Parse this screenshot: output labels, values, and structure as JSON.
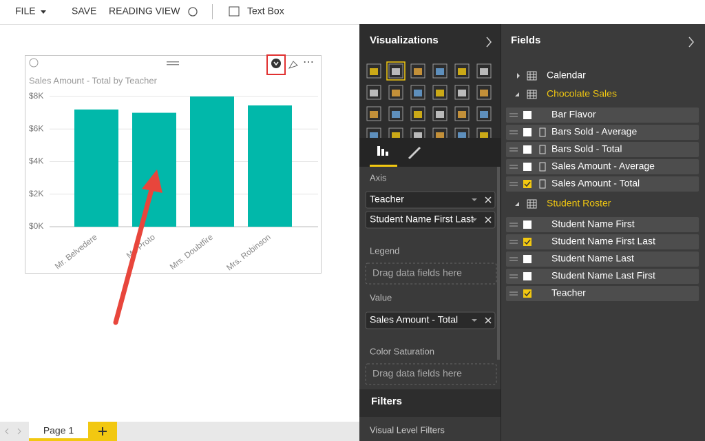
{
  "toolbar": {
    "items": [
      "FILE",
      "SAVE",
      "READING VIEW",
      "Text Box"
    ]
  },
  "report": {
    "chart": {
      "type": "bar",
      "title": "Sales Amount - Total by Teacher",
      "categories": [
        "Mr. Belvedere",
        "Mr. Proto",
        "Mrs. Doubtfire",
        "Mrs. Robinson"
      ],
      "values": [
        7200,
        7000,
        8000,
        7450
      ],
      "color": "#01b8aa",
      "ylim": [
        0,
        8000
      ],
      "yticks": [
        {
          "value": 0,
          "label": "$0K"
        },
        {
          "value": 2000,
          "label": "$2K"
        },
        {
          "value": 4000,
          "label": "$4K"
        },
        {
          "value": 6000,
          "label": "$6K"
        },
        {
          "value": 8000,
          "label": "$8K"
        }
      ],
      "grid": true
    }
  },
  "pages": {
    "tabs": [
      "Page 1"
    ]
  },
  "visualizations": {
    "title": "Visualizations",
    "sections": [
      {
        "label": "Axis",
        "fields": [
          "Teacher",
          "Student Name First Last"
        ]
      },
      {
        "label": "Legend",
        "placeholder": "Drag data fields here"
      },
      {
        "label": "Value",
        "fields": [
          "Sales Amount - Total"
        ]
      },
      {
        "label": "Color Saturation",
        "placeholder": "Drag data fields here"
      }
    ]
  },
  "filters": {
    "title": "Filters",
    "subtitle": "Visual Level Filters"
  },
  "fields": {
    "title": "Fields",
    "tables": [
      {
        "name": "Calendar",
        "expanded": false
      },
      {
        "name": "Chocolate Sales",
        "expanded": true,
        "fields": [
          {
            "name": "Bar Flavor",
            "checked": false,
            "measure": false
          },
          {
            "name": "Bars Sold - Average",
            "checked": false,
            "measure": true
          },
          {
            "name": "Bars Sold - Total",
            "checked": false,
            "measure": true
          },
          {
            "name": "Sales Amount - Average",
            "checked": false,
            "measure": true
          },
          {
            "name": "Sales Amount - Total",
            "checked": true,
            "measure": true
          }
        ]
      },
      {
        "name": "Student Roster",
        "expanded": true,
        "fields": [
          {
            "name": "Student Name First",
            "checked": false,
            "measure": false
          },
          {
            "name": "Student Name First Last",
            "checked": true,
            "measure": false
          },
          {
            "name": "Student Name Last",
            "checked": false,
            "measure": false
          },
          {
            "name": "Student Name Last First",
            "checked": false,
            "measure": false
          },
          {
            "name": "Teacher",
            "checked": true,
            "measure": false
          }
        ]
      }
    ]
  }
}
